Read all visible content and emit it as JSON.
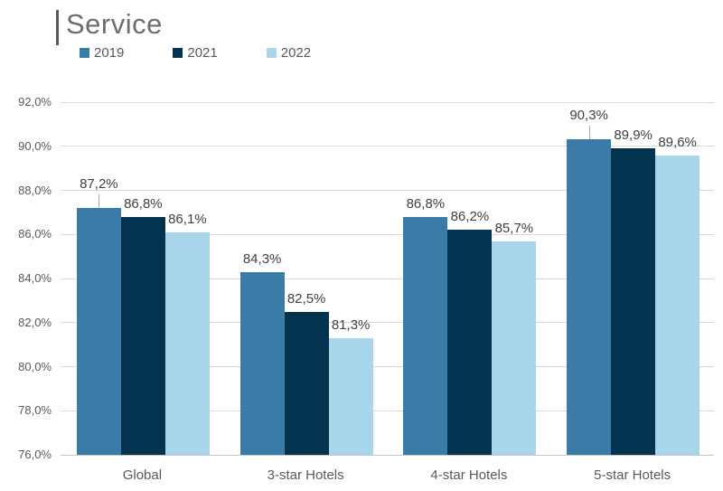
{
  "chart_data": {
    "type": "bar",
    "title": "Service",
    "categories": [
      "Global",
      "3-star Hotels",
      "4-star Hotels",
      "5-star Hotels"
    ],
    "series": [
      {
        "name": "2019",
        "color": "#3a7ba8",
        "values": [
          87.2,
          84.3,
          86.8,
          90.3
        ],
        "labels": [
          "87,2%",
          "84,3%",
          "86,8%",
          "90,3%"
        ],
        "leader_lines": [
          true,
          false,
          false,
          true
        ]
      },
      {
        "name": "2021",
        "color": "#04334f",
        "values": [
          86.8,
          82.5,
          86.2,
          89.9
        ],
        "labels": [
          "86,8%",
          "82,5%",
          "86,2%",
          "89,9%"
        ],
        "leader_lines": [
          false,
          false,
          false,
          false
        ]
      },
      {
        "name": "2022",
        "color": "#aad6ec",
        "values": [
          86.1,
          81.3,
          85.7,
          89.6
        ],
        "labels": [
          "86,1%",
          "81,3%",
          "85,7%",
          "89,6%"
        ],
        "leader_lines": [
          false,
          false,
          false,
          false
        ]
      }
    ],
    "ylabel": "",
    "xlabel": "",
    "ylim": [
      76,
      92
    ],
    "y_tick_step": 2,
    "y_tick_labels": [
      "76,0%",
      "78,0%",
      "80,0%",
      "82,0%",
      "84,0%",
      "86,0%",
      "88,0%",
      "90,0%",
      "92,0%"
    ],
    "grid": true,
    "legend_position": "top-left",
    "decimal_separator": ","
  },
  "colors": {
    "gridline": "#d9d9d9",
    "axis_text": "#595959",
    "data_label_text": "#404040",
    "title_text": "#6d6d6d",
    "title_rule": "#595959",
    "background": "#ffffff"
  }
}
